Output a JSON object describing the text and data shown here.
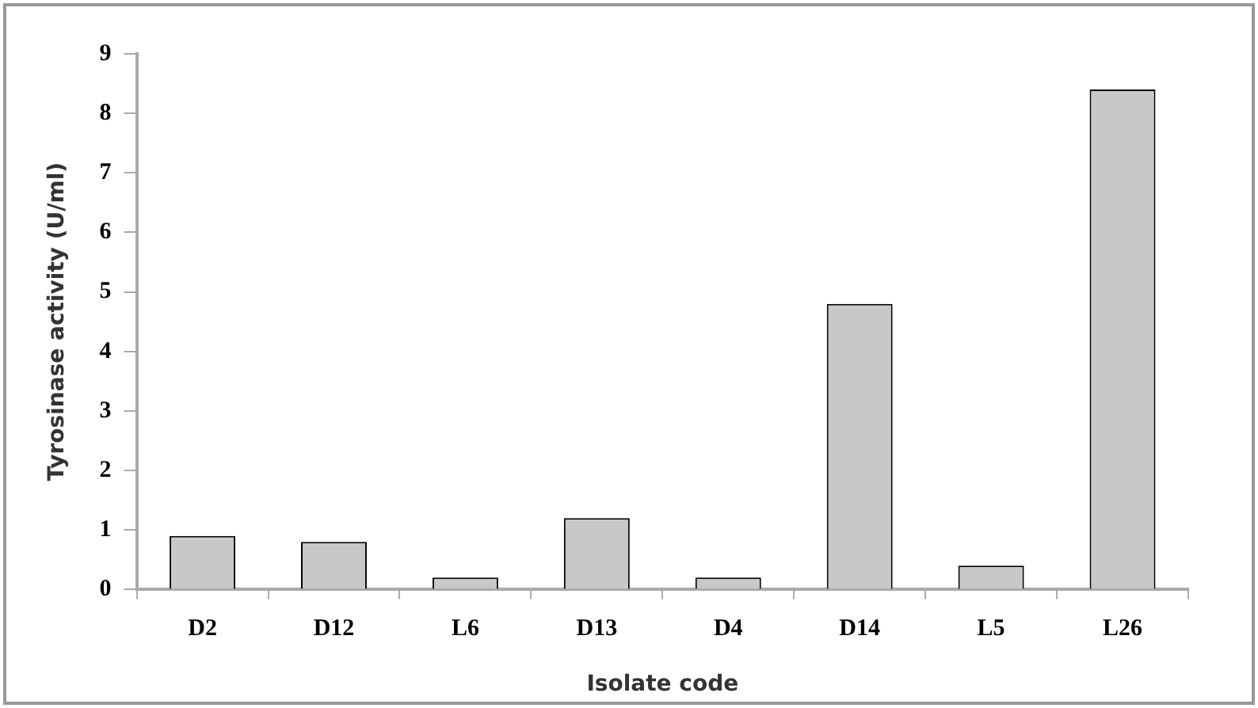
{
  "chart_data": {
    "type": "bar",
    "xlabel": "Isolate code",
    "ylabel": "Tyrosinase activity (U/ml)",
    "categories": [
      "D2",
      "D12",
      "L6",
      "D13",
      "D4",
      "D14",
      "L5",
      "L26"
    ],
    "values": [
      0.9,
      0.8,
      0.2,
      1.2,
      0.2,
      4.8,
      0.4,
      8.4
    ],
    "color": "#c8c8c8",
    "ylim": [
      0,
      9
    ],
    "yticks": [
      0,
      1,
      2,
      3,
      4,
      5,
      6,
      7,
      8,
      9
    ],
    "grid": false,
    "legend": false
  }
}
